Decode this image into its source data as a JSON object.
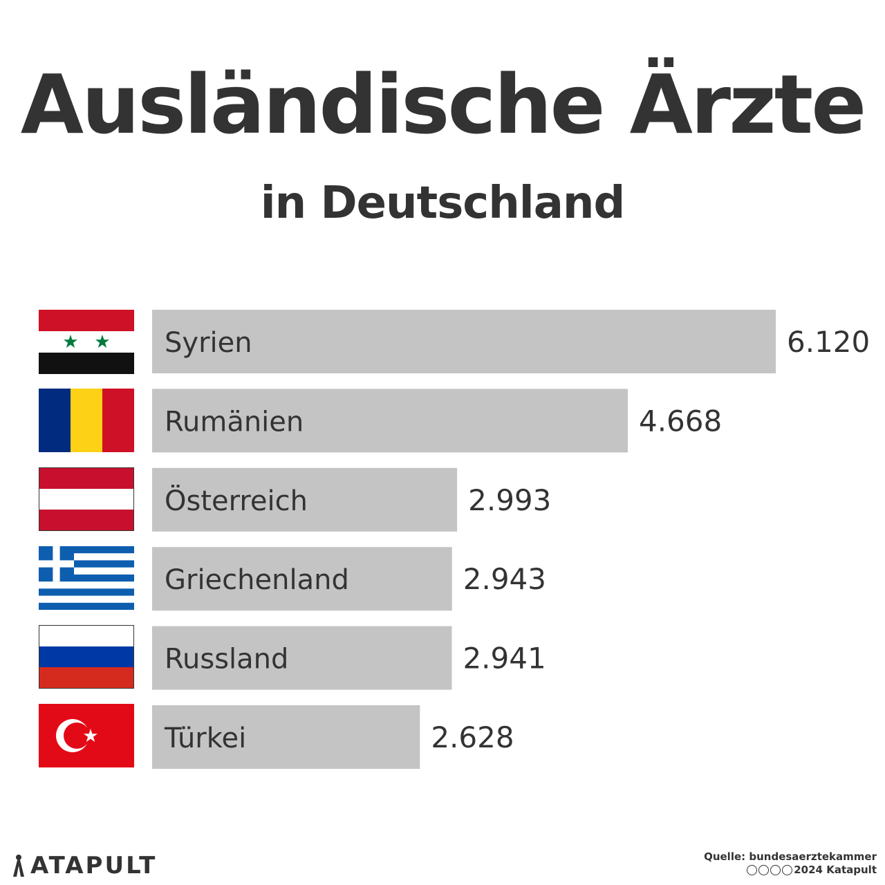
{
  "header": {
    "title": "Ausländische Ärzte",
    "subtitle": "in Deutschland"
  },
  "colors": {
    "text": "#333333",
    "bar": "#c4c4c4",
    "background": "#ffffff"
  },
  "chart_data": {
    "type": "bar",
    "orientation": "horizontal",
    "title": "Ausländische Ärzte",
    "subtitle": "in Deutschland",
    "categories": [
      "Syrien",
      "Rumänien",
      "Österreich",
      "Griechenland",
      "Russland",
      "Türkei"
    ],
    "values": [
      6120,
      4668,
      2993,
      2943,
      2941,
      2628
    ],
    "value_labels": [
      "6.120",
      "4.668",
      "2.993",
      "2.943",
      "2.941",
      "2.628"
    ],
    "icons": [
      "flag-syria-icon",
      "flag-romania-icon",
      "flag-austria-icon",
      "flag-greece-icon",
      "flag-russia-icon",
      "flag-turkey-icon"
    ],
    "xlim": [
      0,
      6120
    ],
    "grid": false,
    "legend": "none"
  },
  "footer": {
    "brand": "ATAPULT",
    "brand_icon": "katapult-logo-icon",
    "source": "Quelle: bundesaerztekammer",
    "license_icons": [
      "cc-icon",
      "by-icon",
      "nc-icon",
      "nd-icon"
    ],
    "license": "2024 Katapult"
  }
}
